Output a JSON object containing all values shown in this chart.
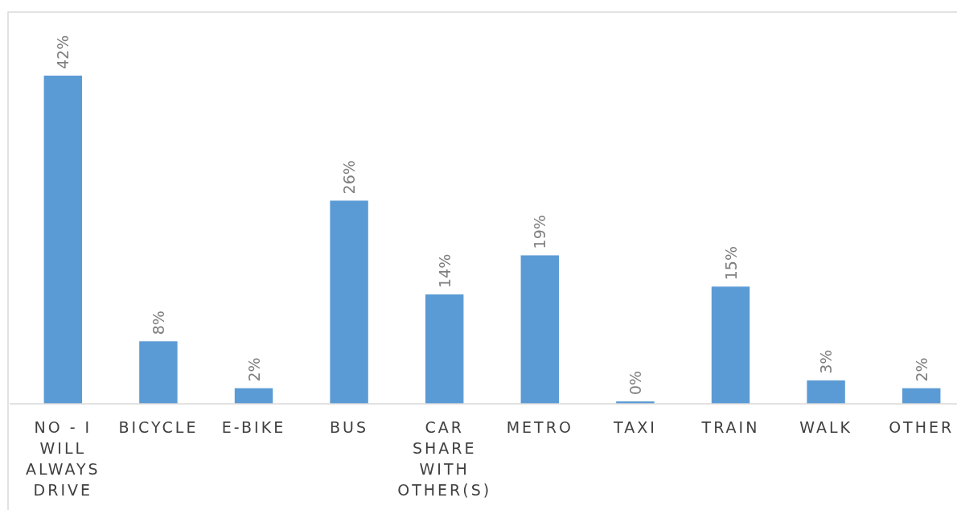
{
  "chart_data": {
    "type": "bar",
    "categories": [
      "NO - I WILL ALWAYS DRIVE",
      "BICYCLE",
      "E-BIKE",
      "BUS",
      "CAR SHARE WITH OTHER(S)",
      "METRO",
      "TAXI",
      "TRAIN",
      "WALK",
      "OTHER"
    ],
    "values": [
      42,
      8,
      2,
      26,
      14,
      19,
      0,
      15,
      3,
      2
    ],
    "value_labels": [
      "42%",
      "8%",
      "2%",
      "26%",
      "14%",
      "19%",
      "0%",
      "15%",
      "3%",
      "2%"
    ],
    "color": "#5b9bd5"
  }
}
